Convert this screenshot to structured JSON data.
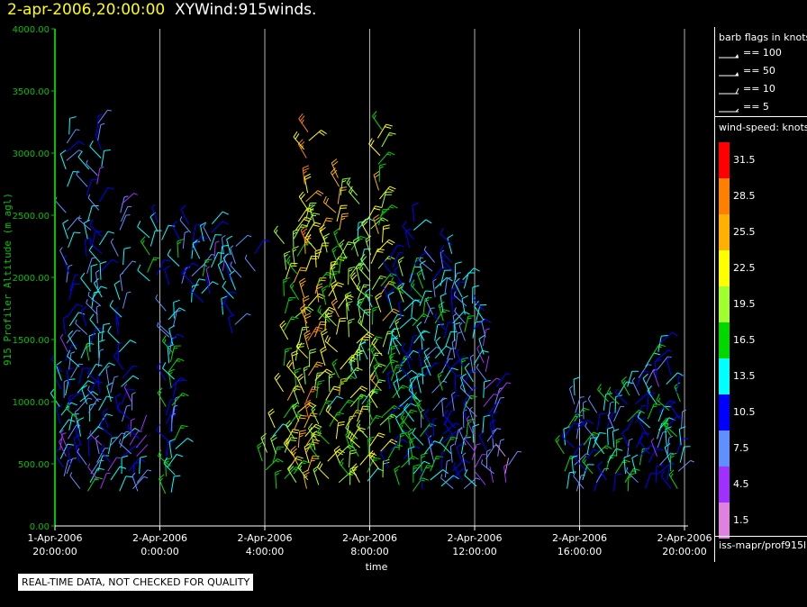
{
  "header": {
    "timestamp": "2-apr-2006,20:00:00",
    "product": "XYWind:915winds."
  },
  "chart_data": {
    "type": "scatter",
    "subtype": "wind-barb",
    "xlabel": "time",
    "ylabel": "915 Profiler Altitude (m agl)",
    "y_tick_labels": [
      "0.00",
      "500.00",
      "1000.00",
      "1500.00",
      "2000.00",
      "2500.00",
      "3000.00",
      "3500.00",
      "4000.00"
    ],
    "ylim": [
      0,
      4000
    ],
    "x_ticks": [
      {
        "t": 0,
        "date": "1-Apr-2006",
        "time": "20:00:00"
      },
      {
        "t": 4,
        "date": "2-Apr-2006",
        "time": "0:00:00"
      },
      {
        "t": 8,
        "date": "2-Apr-2006",
        "time": "4:00:00"
      },
      {
        "t": 12,
        "date": "2-Apr-2006",
        "time": "8:00:00"
      },
      {
        "t": 16,
        "date": "2-Apr-2006",
        "time": "12:00:00"
      },
      {
        "t": 20,
        "date": "2-Apr-2006",
        "time": "16:00:00"
      },
      {
        "t": 24,
        "date": "2-Apr-2006",
        "time": "20:00:00"
      }
    ],
    "xlim": [
      0,
      24
    ],
    "grid": "vertical",
    "columns": [
      {
        "t": 0.25,
        "lo": 400,
        "hi": 1250,
        "speed": 9
      },
      {
        "t": 0.5,
        "lo": 350,
        "hi": 3180,
        "speed": 10
      },
      {
        "t": 0.9,
        "lo": 300,
        "hi": 1450,
        "speed": 11
      },
      {
        "t": 1.3,
        "lo": 280,
        "hi": 2900,
        "speed": 11
      },
      {
        "t": 1.7,
        "lo": 300,
        "hi": 3270,
        "speed": 10
      },
      {
        "t": 2.1,
        "lo": 300,
        "hi": 1200,
        "speed": 9
      },
      {
        "t": 2.5,
        "lo": 280,
        "hi": 2600,
        "speed": 10
      },
      {
        "t": 2.9,
        "lo": 300,
        "hi": 1000,
        "speed": 9
      },
      {
        "t": 3.2,
        "lo": 280,
        "hi": 800,
        "speed": 8
      },
      {
        "t": 3.6,
        "lo": 1900,
        "hi": 2520,
        "speed": 12
      },
      {
        "t": 4.0,
        "lo": 1950,
        "hi": 2500,
        "speed": 13
      },
      {
        "t": 4.3,
        "lo": 260,
        "hi": 1950,
        "speed": 12
      },
      {
        "t": 4.5,
        "lo": 270,
        "hi": 1700,
        "speed": 12
      },
      {
        "t": 4.8,
        "lo": 1950,
        "hi": 2300,
        "speed": 12
      },
      {
        "t": 5.2,
        "lo": 1800,
        "hi": 2450,
        "speed": 11
      },
      {
        "t": 5.6,
        "lo": 1800,
        "hi": 2300,
        "speed": 11
      },
      {
        "t": 6.0,
        "lo": 1800,
        "hi": 2480,
        "speed": 10
      },
      {
        "t": 6.4,
        "lo": 1700,
        "hi": 2200,
        "speed": 10
      },
      {
        "t": 6.8,
        "lo": 1550,
        "hi": 2250,
        "speed": 10
      },
      {
        "t": 7.2,
        "lo": 2000,
        "hi": 2250,
        "speed": 6
      },
      {
        "t": 7.6,
        "lo": 2050,
        "hi": 2200,
        "speed": 6
      },
      {
        "t": 8.0,
        "lo": 380,
        "hi": 720,
        "speed": 18
      },
      {
        "t": 8.4,
        "lo": 300,
        "hi": 820,
        "speed": 17
      },
      {
        "t": 8.8,
        "lo": 380,
        "hi": 2300,
        "speed": 20
      },
      {
        "t": 9.2,
        "lo": 350,
        "hi": 2450,
        "speed": 21
      },
      {
        "t": 9.6,
        "lo": 300,
        "hi": 3200,
        "speed": 24
      },
      {
        "t": 10.0,
        "lo": 330,
        "hi": 2450,
        "speed": 20
      },
      {
        "t": 10.4,
        "lo": 380,
        "hi": 2300,
        "speed": 19
      },
      {
        "t": 10.8,
        "lo": 350,
        "hi": 2800,
        "speed": 21
      },
      {
        "t": 11.2,
        "lo": 330,
        "hi": 2250,
        "speed": 20
      },
      {
        "t": 11.6,
        "lo": 350,
        "hi": 2700,
        "speed": 18
      },
      {
        "t": 12.0,
        "lo": 360,
        "hi": 2500,
        "speed": 17
      },
      {
        "t": 12.4,
        "lo": 320,
        "hi": 3200,
        "speed": 20
      },
      {
        "t": 12.8,
        "lo": 330,
        "hi": 2150,
        "speed": 14
      },
      {
        "t": 13.2,
        "lo": 330,
        "hi": 2050,
        "speed": 14
      },
      {
        "t": 13.6,
        "lo": 280,
        "hi": 2450,
        "speed": 13
      },
      {
        "t": 14.0,
        "lo": 300,
        "hi": 2000,
        "speed": 12
      },
      {
        "t": 14.4,
        "lo": 300,
        "hi": 2150,
        "speed": 11
      },
      {
        "t": 14.8,
        "lo": 320,
        "hi": 2100,
        "speed": 12
      },
      {
        "t": 15.2,
        "lo": 300,
        "hi": 2350,
        "speed": 11
      },
      {
        "t": 15.6,
        "lo": 300,
        "hi": 2000,
        "speed": 11
      },
      {
        "t": 16.0,
        "lo": 320,
        "hi": 1800,
        "speed": 10
      },
      {
        "t": 16.4,
        "lo": 330,
        "hi": 1800,
        "speed": 9
      },
      {
        "t": 16.8,
        "lo": 350,
        "hi": 1150,
        "speed": 7
      },
      {
        "t": 17.2,
        "lo": 350,
        "hi": 600,
        "speed": 6
      },
      {
        "t": 19.5,
        "lo": 300,
        "hi": 900,
        "speed": 12
      },
      {
        "t": 19.8,
        "lo": 280,
        "hi": 1100,
        "speed": 11
      },
      {
        "t": 20.2,
        "lo": 300,
        "hi": 900,
        "speed": 12
      },
      {
        "t": 20.6,
        "lo": 280,
        "hi": 950,
        "speed": 11
      },
      {
        "t": 21.0,
        "lo": 300,
        "hi": 1000,
        "speed": 12
      },
      {
        "t": 21.4,
        "lo": 280,
        "hi": 1050,
        "speed": 11
      },
      {
        "t": 21.8,
        "lo": 280,
        "hi": 1300,
        "speed": 12
      },
      {
        "t": 22.2,
        "lo": 280,
        "hi": 1200,
        "speed": 11
      },
      {
        "t": 22.6,
        "lo": 300,
        "hi": 1380,
        "speed": 12
      },
      {
        "t": 23.0,
        "lo": 280,
        "hi": 1500,
        "speed": 10
      },
      {
        "t": 23.4,
        "lo": 300,
        "hi": 1250,
        "speed": 13
      },
      {
        "t": 23.8,
        "lo": 300,
        "hi": 1100,
        "speed": 12
      }
    ]
  },
  "legend": {
    "barb_title": "barb flags in knots",
    "barb_flags": [
      {
        "label": "== 100",
        "knots": 100
      },
      {
        "label": "== 50",
        "knots": 50
      },
      {
        "label": "== 10",
        "knots": 10
      },
      {
        "label": "== 5",
        "knots": 5
      }
    ],
    "speed_title": "wind-speed: knots",
    "color_scale": [
      {
        "label": "31.5",
        "color": "#ff0000"
      },
      {
        "label": "28.5",
        "color": "#ff8000"
      },
      {
        "label": "25.5",
        "color": "#ffb000"
      },
      {
        "label": "22.5",
        "color": "#ffff00"
      },
      {
        "label": "19.5",
        "color": "#a0ff30"
      },
      {
        "label": "16.5",
        "color": "#00d800"
      },
      {
        "label": "13.5",
        "color": "#00ffff"
      },
      {
        "label": "10.5",
        "color": "#0000ff"
      },
      {
        "label": "7.5",
        "color": "#6090ff"
      },
      {
        "label": "4.5",
        "color": "#a030ff"
      },
      {
        "label": "1.5",
        "color": "#e080e0"
      }
    ]
  },
  "footer": {
    "source": "iss-mapr/prof915l",
    "disclaimer": "REAL-TIME DATA, NOT CHECKED FOR QUALITY"
  },
  "colors": {
    "axis": "#00c000",
    "grid": "#b0b0b0",
    "background": "#000000"
  }
}
